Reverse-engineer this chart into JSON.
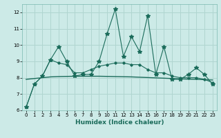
{
  "title": "",
  "xlabel": "Humidex (Indice chaleur)",
  "bg_color": "#cceae7",
  "grid_color": "#b0d5d0",
  "line_color": "#1a6b5a",
  "xlim": [
    -0.5,
    23.5
  ],
  "ylim": [
    6,
    12.5
  ],
  "yticks": [
    6,
    7,
    8,
    9,
    10,
    11,
    12
  ],
  "xticks": [
    0,
    1,
    2,
    3,
    4,
    5,
    6,
    7,
    8,
    9,
    10,
    11,
    12,
    13,
    14,
    15,
    16,
    17,
    18,
    19,
    20,
    21,
    22,
    23
  ],
  "series1_x": [
    0,
    1,
    2,
    3,
    4,
    5,
    6,
    7,
    8,
    9,
    10,
    11,
    12,
    13,
    14,
    15,
    16,
    17,
    18,
    19,
    20,
    21,
    22,
    23
  ],
  "series1_y": [
    6.2,
    7.6,
    8.1,
    9.1,
    9.9,
    9.0,
    8.1,
    8.2,
    8.2,
    9.0,
    10.7,
    12.2,
    9.3,
    10.5,
    9.6,
    11.8,
    8.2,
    9.9,
    7.9,
    7.9,
    8.2,
    8.6,
    8.2,
    7.6
  ],
  "series2_x": [
    0,
    1,
    2,
    3,
    4,
    5,
    6,
    7,
    8,
    9,
    10,
    11,
    12,
    13,
    14,
    15,
    16,
    17,
    18,
    19,
    20,
    21,
    22,
    23
  ],
  "series2_y": [
    6.2,
    7.6,
    8.1,
    9.1,
    8.9,
    8.8,
    8.3,
    8.3,
    8.5,
    8.7,
    8.8,
    8.9,
    8.9,
    8.8,
    8.8,
    8.5,
    8.3,
    8.3,
    8.1,
    8.0,
    8.0,
    8.0,
    7.9,
    7.7
  ],
  "series3_x": [
    0,
    1,
    2,
    3,
    4,
    5,
    6,
    7,
    8,
    9,
    10,
    11,
    12,
    13,
    14,
    15,
    16,
    17,
    18,
    19,
    20,
    21,
    22,
    23
  ],
  "series3_y": [
    7.9,
    7.95,
    8.0,
    8.05,
    8.07,
    8.08,
    8.09,
    8.09,
    8.09,
    8.09,
    8.08,
    8.07,
    8.06,
    8.05,
    8.03,
    8.01,
    7.99,
    7.97,
    7.95,
    7.93,
    7.91,
    7.9,
    7.88,
    7.86
  ]
}
